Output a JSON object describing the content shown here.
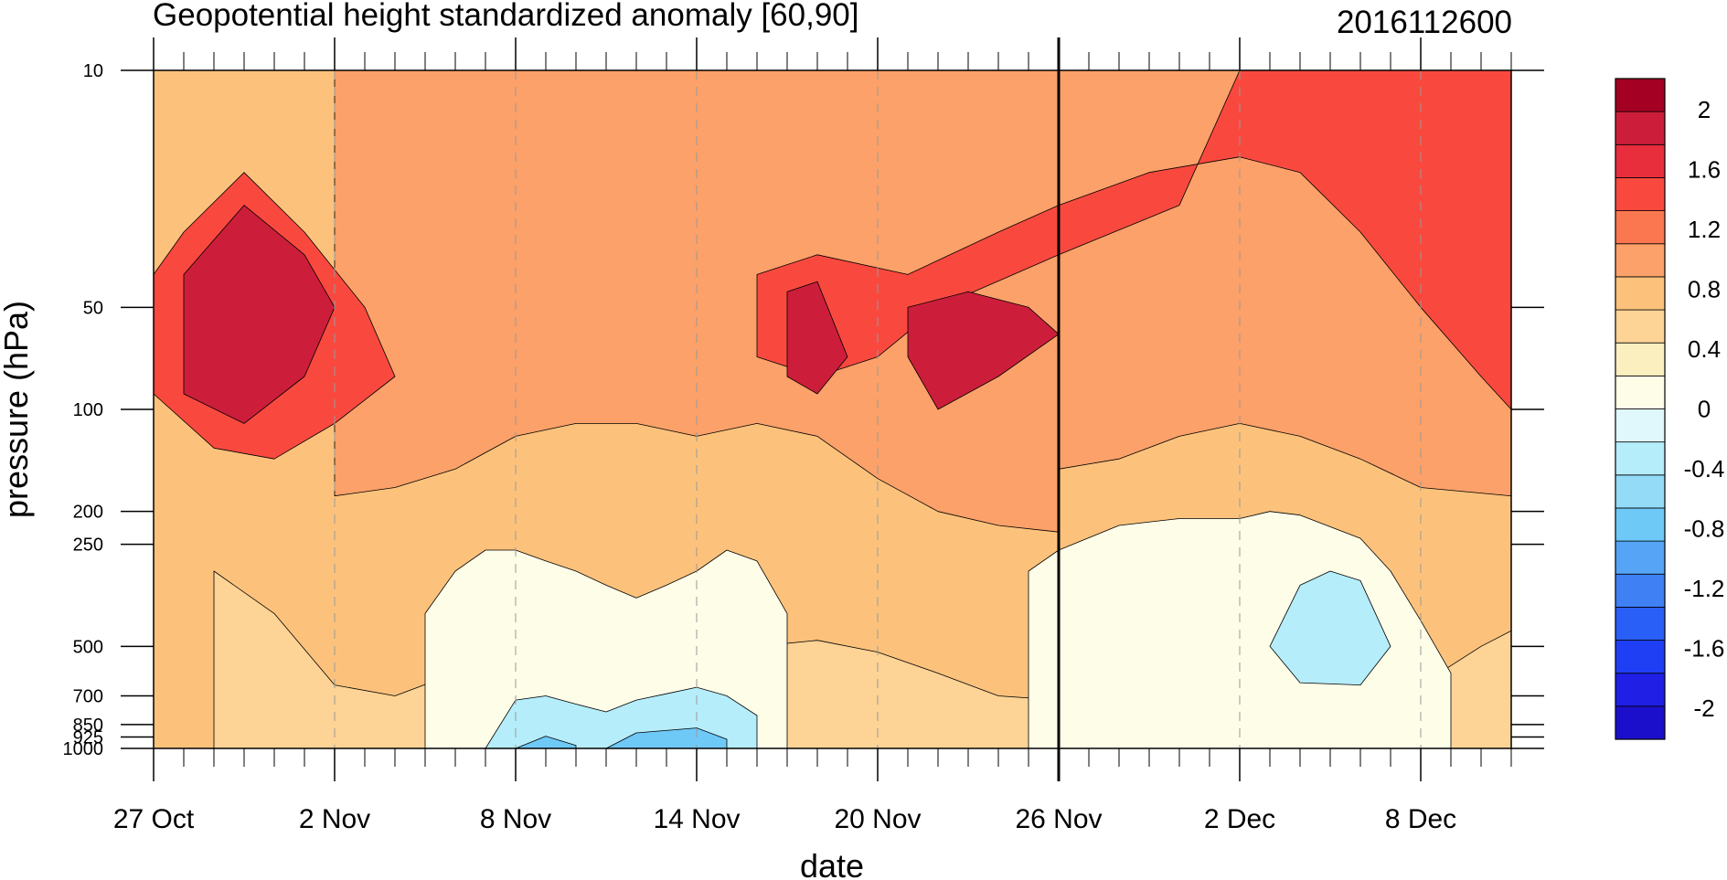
{
  "chart_data": {
    "type": "heatmap",
    "title": "Geopotential height standardized anomaly [60,90]",
    "date_label": "2016112600",
    "xlabel": "date",
    "ylabel": "pressure (hPa)",
    "x_start": "27 Oct",
    "x_range_days": [
      0,
      45
    ],
    "x_ticks": [
      {
        "day": 0,
        "label": "27 Oct"
      },
      {
        "day": 6,
        "label": "2 Nov"
      },
      {
        "day": 12,
        "label": "8 Nov"
      },
      {
        "day": 18,
        "label": "14 Nov"
      },
      {
        "day": 24,
        "label": "20 Nov"
      },
      {
        "day": 30,
        "label": "26 Nov"
      },
      {
        "day": 36,
        "label": "2 Dec"
      },
      {
        "day": 42,
        "label": "8 Dec"
      }
    ],
    "y_scale": "log",
    "y_range": [
      1000,
      10
    ],
    "y_ticks": [
      {
        "p": 10,
        "label": "10"
      },
      {
        "p": 50,
        "label": "50"
      },
      {
        "p": 100,
        "label": "100"
      },
      {
        "p": 200,
        "label": "200"
      },
      {
        "p": 250,
        "label": "250"
      },
      {
        "p": 500,
        "label": "500"
      },
      {
        "p": 700,
        "label": "700"
      },
      {
        "p": 850,
        "label": "850"
      },
      {
        "p": 925,
        "label": "925"
      },
      {
        "p": 1000,
        "label": "1000"
      }
    ],
    "analysis_date_line_day": 30,
    "colorbar": {
      "colors": [
        "#1c0fcc",
        "#1f1fe5",
        "#1f3ff5",
        "#2a5ff7",
        "#3f80f5",
        "#56a4f5",
        "#6ec9f7",
        "#93dbf7",
        "#b5edfa",
        "#e0f8fb",
        "#fefde8",
        "#fcefbf",
        "#fdd396",
        "#fcc27c",
        "#fca169",
        "#fb7750",
        "#f9493f",
        "#e82e3d",
        "#cc1e3a",
        "#a30023"
      ],
      "labels": [
        "2",
        "1.6",
        "1.2",
        "0.8",
        "0.4",
        "0",
        "-0.4",
        "-0.8",
        "-1.2",
        "-1.6",
        "-2"
      ]
    },
    "regions": [
      {
        "level": 0.4,
        "points": [
          [
            2,
            300
          ],
          [
            4,
            400
          ],
          [
            6,
            650
          ],
          [
            8,
            700
          ],
          [
            10,
            600
          ],
          [
            12,
            520
          ],
          [
            14,
            560
          ],
          [
            16,
            600
          ],
          [
            18,
            560
          ],
          [
            20,
            500
          ],
          [
            22,
            480
          ],
          [
            24,
            520
          ],
          [
            26,
            600
          ],
          [
            28,
            700
          ],
          [
            30,
            720
          ],
          [
            32,
            680
          ],
          [
            34,
            620
          ],
          [
            36,
            560
          ],
          [
            38,
            600
          ],
          [
            40,
            700
          ],
          [
            42,
            650
          ],
          [
            44,
            500
          ],
          [
            45,
            450
          ],
          [
            45,
            1000
          ],
          [
            2,
            1000
          ]
        ]
      },
      {
        "level": 0.0,
        "points": [
          [
            9,
            1000
          ],
          [
            9,
            400
          ],
          [
            10,
            300
          ],
          [
            11,
            260
          ],
          [
            12,
            260
          ],
          [
            13,
            280
          ],
          [
            14,
            300
          ],
          [
            15,
            330
          ],
          [
            16,
            360
          ],
          [
            17,
            330
          ],
          [
            18,
            300
          ],
          [
            19,
            260
          ],
          [
            20,
            280
          ],
          [
            21,
            400
          ],
          [
            21,
            1000
          ]
        ]
      },
      {
        "level": 0.0,
        "points": [
          [
            29,
            1000
          ],
          [
            29,
            300
          ],
          [
            30,
            260
          ],
          [
            32,
            220
          ],
          [
            34,
            210
          ],
          [
            36,
            210
          ],
          [
            37,
            200
          ],
          [
            38,
            205
          ],
          [
            40,
            240
          ],
          [
            41,
            300
          ],
          [
            42,
            420
          ],
          [
            43,
            600
          ],
          [
            43,
            1000
          ]
        ]
      },
      {
        "level": 0.8,
        "points": [
          [
            0,
            10
          ],
          [
            6,
            10
          ],
          [
            6,
            180
          ],
          [
            8,
            170
          ],
          [
            10,
            150
          ],
          [
            12,
            120
          ],
          [
            14,
            110
          ],
          [
            16,
            110
          ],
          [
            18,
            120
          ],
          [
            20,
            110
          ],
          [
            22,
            120
          ],
          [
            24,
            160
          ],
          [
            26,
            200
          ],
          [
            28,
            220
          ],
          [
            30,
            230
          ],
          [
            30,
            10
          ]
        ]
      },
      {
        "level": 0.8,
        "points": [
          [
            30,
            10
          ],
          [
            45,
            10
          ],
          [
            45,
            180
          ],
          [
            42,
            170
          ],
          [
            40,
            140
          ],
          [
            38,
            120
          ],
          [
            36,
            110
          ],
          [
            34,
            120
          ],
          [
            32,
            140
          ],
          [
            30,
            150
          ]
        ]
      },
      {
        "level": 1.2,
        "points": [
          [
            0,
            40
          ],
          [
            1,
            30
          ],
          [
            3,
            20
          ],
          [
            5,
            30
          ],
          [
            7,
            50
          ],
          [
            8,
            80
          ],
          [
            6,
            110
          ],
          [
            4,
            140
          ],
          [
            2,
            130
          ],
          [
            0,
            90
          ]
        ]
      },
      {
        "level": 1.2,
        "points": [
          [
            20,
            40
          ],
          [
            22,
            35
          ],
          [
            25,
            40
          ],
          [
            28,
            30
          ],
          [
            30,
            25
          ],
          [
            33,
            20
          ],
          [
            36,
            18
          ],
          [
            38,
            20
          ],
          [
            40,
            30
          ],
          [
            42,
            50
          ],
          [
            44,
            80
          ],
          [
            45,
            100
          ],
          [
            45,
            10
          ],
          [
            36,
            10
          ],
          [
            34,
            25
          ],
          [
            30,
            35
          ],
          [
            26,
            50
          ],
          [
            24,
            70
          ],
          [
            22,
            80
          ],
          [
            20,
            70
          ]
        ]
      },
      {
        "level": 1.6,
        "points": [
          [
            1,
            40
          ],
          [
            3,
            25
          ],
          [
            5,
            35
          ],
          [
            6,
            50
          ],
          [
            5,
            80
          ],
          [
            3,
            110
          ],
          [
            1,
            90
          ]
        ]
      },
      {
        "level": 1.6,
        "points": [
          [
            21,
            45
          ],
          [
            22,
            42
          ],
          [
            23,
            70
          ],
          [
            22,
            90
          ],
          [
            21,
            80
          ]
        ]
      },
      {
        "level": 1.6,
        "points": [
          [
            25,
            50
          ],
          [
            27,
            45
          ],
          [
            29,
            50
          ],
          [
            30,
            60
          ],
          [
            28,
            80
          ],
          [
            26,
            100
          ],
          [
            25,
            70
          ]
        ]
      },
      {
        "level": -0.4,
        "points": [
          [
            11,
            1000
          ],
          [
            12,
            720
          ],
          [
            13,
            700
          ],
          [
            14,
            740
          ],
          [
            15,
            780
          ],
          [
            16,
            720
          ],
          [
            17,
            690
          ],
          [
            18,
            660
          ],
          [
            19,
            700
          ],
          [
            20,
            800
          ],
          [
            20,
            1000
          ]
        ]
      },
      {
        "level": -0.4,
        "points": [
          [
            37,
            500
          ],
          [
            38,
            330
          ],
          [
            39,
            300
          ],
          [
            40,
            320
          ],
          [
            41,
            500
          ],
          [
            40,
            650
          ],
          [
            38,
            640
          ]
        ]
      },
      {
        "level": -0.8,
        "points": [
          [
            12,
            1000
          ],
          [
            13,
            920
          ],
          [
            14,
            980
          ],
          [
            14,
            1000
          ]
        ]
      },
      {
        "level": -0.8,
        "points": [
          [
            15,
            1000
          ],
          [
            16,
            900
          ],
          [
            18,
            870
          ],
          [
            19,
            940
          ],
          [
            19,
            1000
          ]
        ]
      }
    ]
  }
}
